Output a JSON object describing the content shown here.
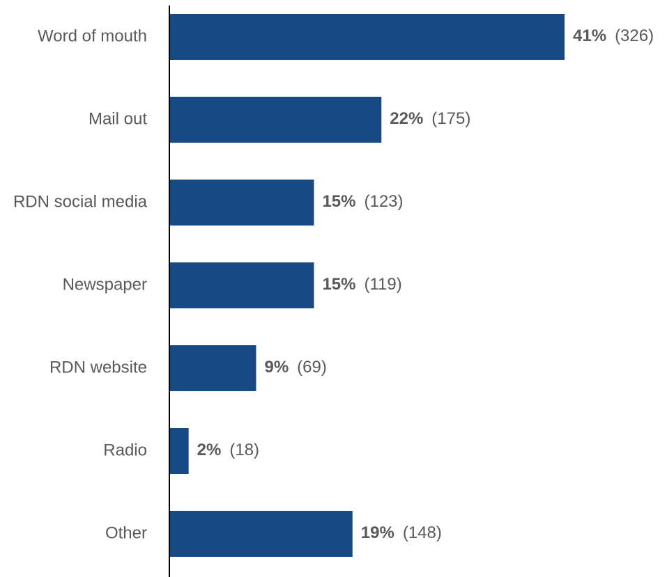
{
  "chart_data": {
    "type": "bar",
    "orientation": "horizontal",
    "categories": [
      "Word of mouth",
      "Mail out",
      "RDN social media",
      "Newspaper",
      "RDN website",
      "Radio",
      "Other"
    ],
    "values": [
      41,
      22,
      15,
      15,
      9,
      2,
      19
    ],
    "value_labels": [
      "41%",
      "22%",
      "15%",
      "15%",
      "9%",
      "2%",
      "19%"
    ],
    "count_labels": [
      "(326)",
      "(175)",
      "(123)",
      "(119)",
      "(69)",
      "(18)",
      "(148)"
    ],
    "color": "#174a84"
  }
}
